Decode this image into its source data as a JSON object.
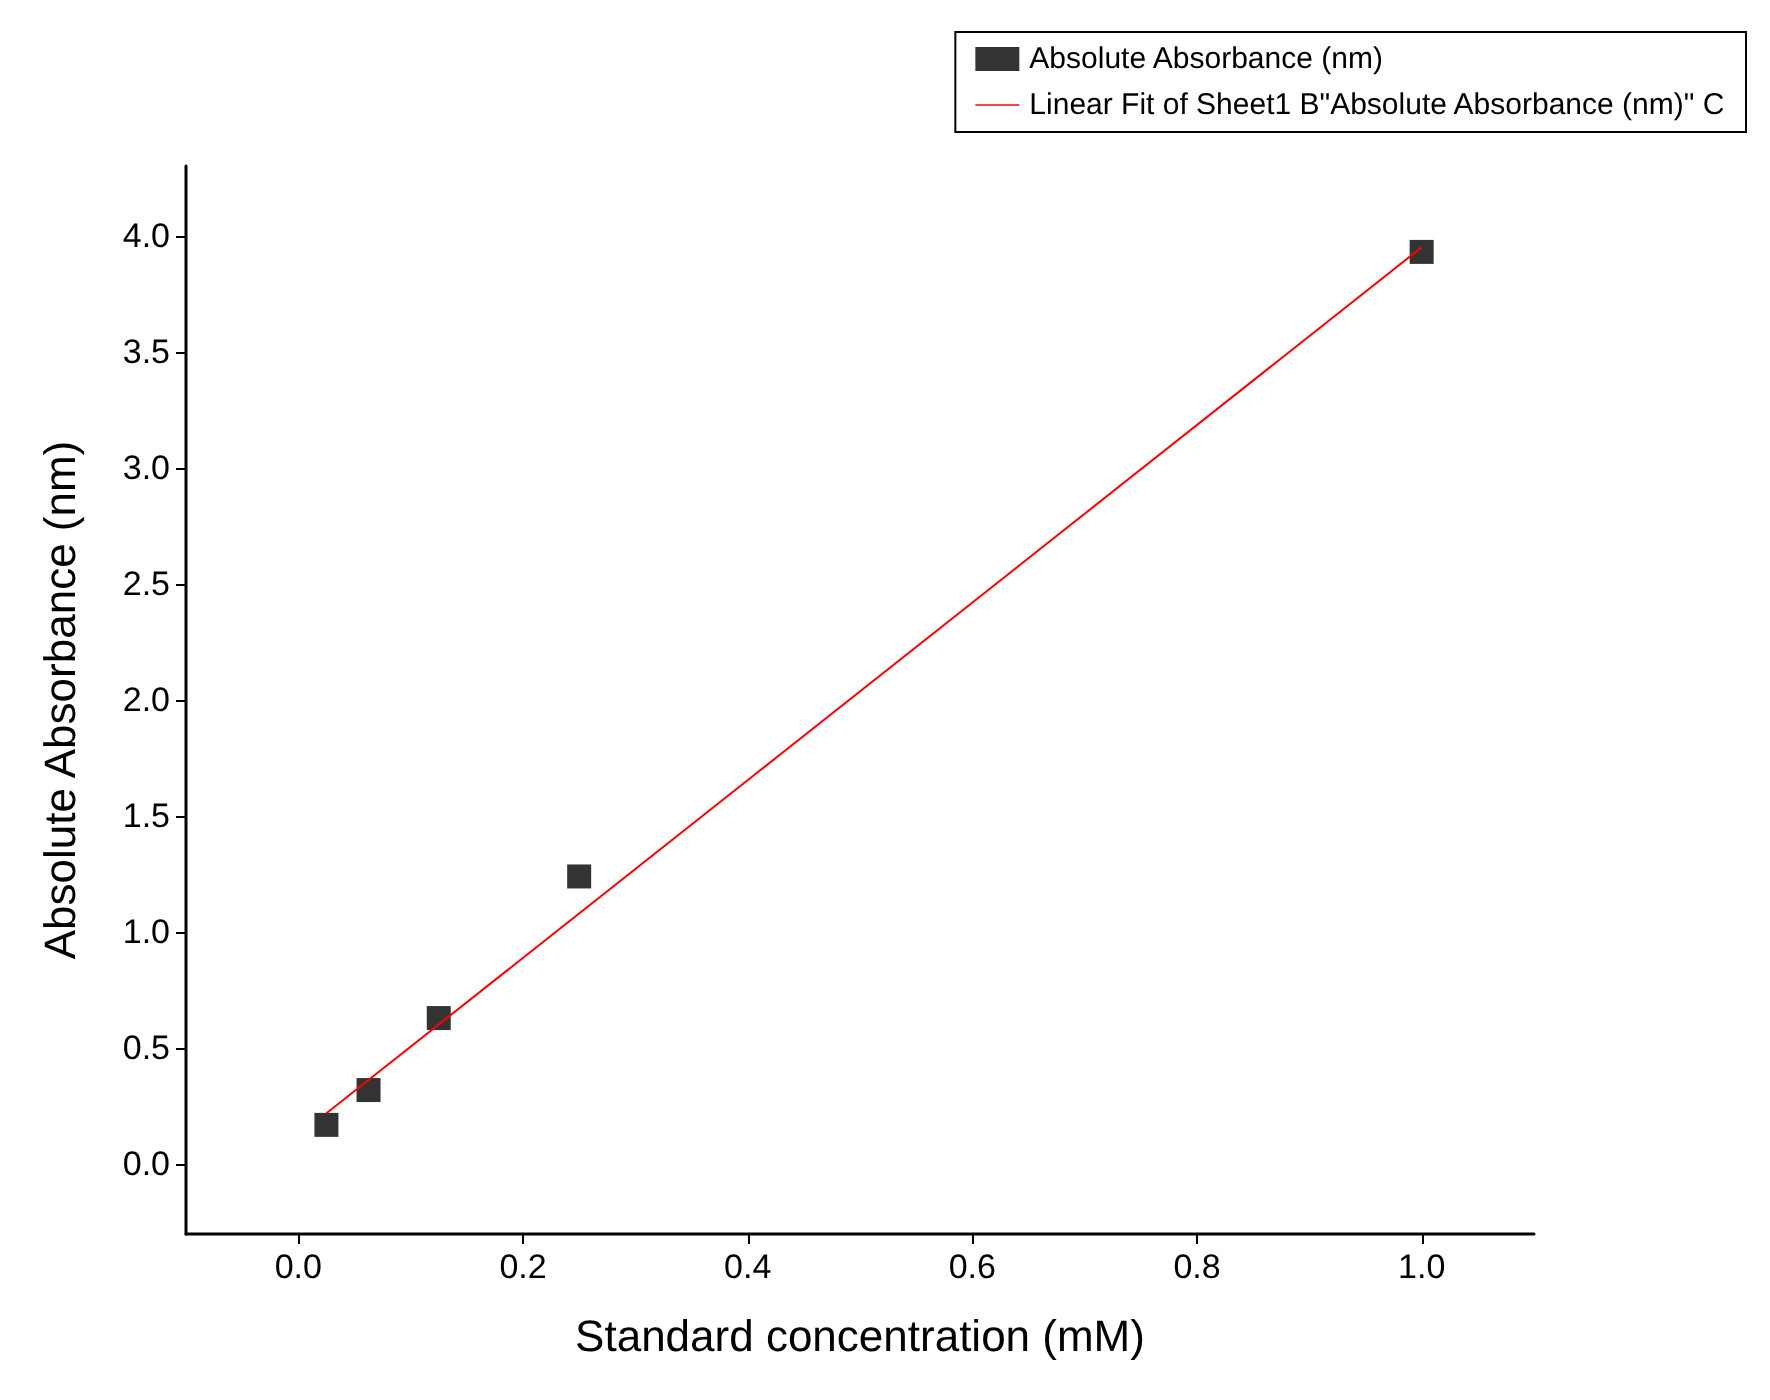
{
  "chart_data": {
    "type": "scatter",
    "xlabel": "Standard concentration (mM)",
    "ylabel": "Absolute Absorbance (nm)",
    "xlim": [
      -0.1,
      1.1
    ],
    "ylim": [
      -0.3,
      4.3
    ],
    "xticks": [
      {
        "value": 0,
        "label": "0.0"
      },
      0.2,
      0.4,
      0.6,
      0.8,
      {
        "value": 1,
        "label": "1.0"
      }
    ],
    "yticks": [
      {
        "value": 0,
        "label": "0.0"
      },
      0.5,
      {
        "value": 1,
        "label": "1.0"
      },
      1.5,
      {
        "value": 2,
        "label": "2.0"
      },
      2.5,
      {
        "value": 3,
        "label": "3.0"
      },
      3.5,
      {
        "value": 4,
        "label": "4.0"
      }
    ],
    "legend": "top right",
    "grid": false,
    "series": [
      {
        "name": "Absolute Absorbance (nm)",
        "color": "#000000",
        "marker": "square",
        "x": [
          0.025,
          0.0625,
          0.125,
          0.25,
          1.0
        ],
        "values": [
          0.17,
          0.32,
          0.63,
          1.24,
          3.93
        ]
      },
      {
        "name": "Linear Fit of Sheet1 B\"Absolute Absorbance (nm)\" C",
        "type": "line",
        "color": "#ff0000",
        "x": [
          0.025,
          1.0
        ],
        "values": [
          0.22,
          3.95
        ]
      }
    ]
  }
}
